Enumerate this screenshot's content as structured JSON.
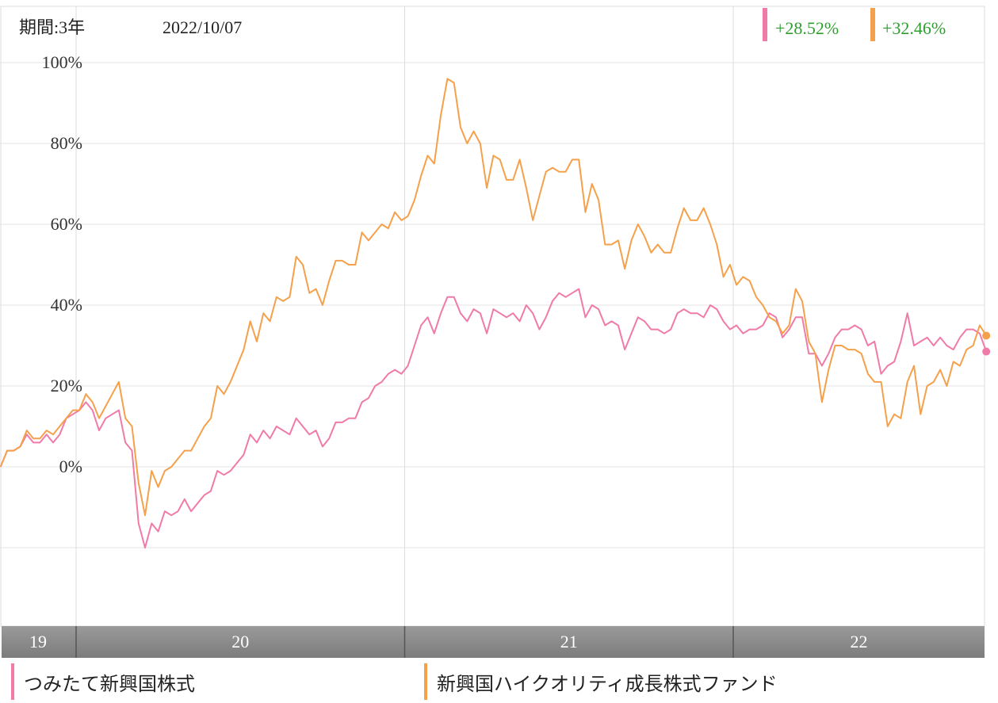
{
  "header": {
    "period": "期間:3年",
    "date": "2022/10/07"
  },
  "legend": [
    {
      "label": "つみたて新興国株式",
      "color": "#f07aa8",
      "change": "+28.52%"
    },
    {
      "label": "新興国ハイクオリティ成長株式ファンド",
      "color": "#f5a04a",
      "change": "+32.46%"
    }
  ],
  "colors": {
    "positive_text": "#2e9e2e",
    "time_axis_band": "#8c8c8c"
  },
  "chart_data": {
    "type": "line",
    "y_ticks": [
      "100%",
      "80%",
      "60%",
      "40%",
      "20%",
      "0%"
    ],
    "y_tick_values": [
      100,
      80,
      60,
      40,
      20,
      0
    ],
    "ylim": [
      -40,
      100
    ],
    "xlim": [
      2019.77,
      2022.77
    ],
    "x_ticks": [
      "19",
      "20",
      "21",
      "22"
    ],
    "year_boundaries": [
      2020,
      2021,
      2022
    ],
    "grid": true,
    "legend_placement": "top-right",
    "series": [
      {
        "name": "つみたて新興国株式",
        "color": "#f07aa8",
        "points": [
          [
            2019.77,
            0
          ],
          [
            2019.79,
            4
          ],
          [
            2019.81,
            4
          ],
          [
            2019.83,
            5
          ],
          [
            2019.85,
            8
          ],
          [
            2019.87,
            6
          ],
          [
            2019.89,
            6
          ],
          [
            2019.91,
            8
          ],
          [
            2019.93,
            6
          ],
          [
            2019.95,
            8
          ],
          [
            2019.97,
            12
          ],
          [
            2019.99,
            13
          ],
          [
            2020.01,
            14
          ],
          [
            2020.03,
            16
          ],
          [
            2020.05,
            14
          ],
          [
            2020.07,
            9
          ],
          [
            2020.09,
            12
          ],
          [
            2020.11,
            13
          ],
          [
            2020.13,
            14
          ],
          [
            2020.15,
            6
          ],
          [
            2020.17,
            4
          ],
          [
            2020.19,
            -14
          ],
          [
            2020.21,
            -20
          ],
          [
            2020.23,
            -14
          ],
          [
            2020.25,
            -16
          ],
          [
            2020.27,
            -11
          ],
          [
            2020.29,
            -12
          ],
          [
            2020.31,
            -11
          ],
          [
            2020.33,
            -8
          ],
          [
            2020.35,
            -11
          ],
          [
            2020.37,
            -9
          ],
          [
            2020.39,
            -7
          ],
          [
            2020.41,
            -6
          ],
          [
            2020.43,
            -1
          ],
          [
            2020.45,
            -2
          ],
          [
            2020.47,
            -1
          ],
          [
            2020.49,
            1
          ],
          [
            2020.51,
            3
          ],
          [
            2020.53,
            8
          ],
          [
            2020.55,
            6
          ],
          [
            2020.57,
            9
          ],
          [
            2020.59,
            7
          ],
          [
            2020.61,
            10
          ],
          [
            2020.63,
            9
          ],
          [
            2020.65,
            8
          ],
          [
            2020.67,
            12
          ],
          [
            2020.69,
            10
          ],
          [
            2020.71,
            8
          ],
          [
            2020.73,
            9
          ],
          [
            2020.75,
            5
          ],
          [
            2020.77,
            7
          ],
          [
            2020.79,
            11
          ],
          [
            2020.81,
            11
          ],
          [
            2020.83,
            12
          ],
          [
            2020.85,
            12
          ],
          [
            2020.87,
            16
          ],
          [
            2020.89,
            17
          ],
          [
            2020.91,
            20
          ],
          [
            2020.93,
            21
          ],
          [
            2020.95,
            23
          ],
          [
            2020.97,
            24
          ],
          [
            2020.99,
            23
          ],
          [
            2021.01,
            25
          ],
          [
            2021.03,
            30
          ],
          [
            2021.05,
            35
          ],
          [
            2021.07,
            37
          ],
          [
            2021.09,
            33
          ],
          [
            2021.11,
            38
          ],
          [
            2021.13,
            42
          ],
          [
            2021.15,
            42
          ],
          [
            2021.17,
            38
          ],
          [
            2021.19,
            36
          ],
          [
            2021.21,
            39
          ],
          [
            2021.23,
            38
          ],
          [
            2021.25,
            33
          ],
          [
            2021.27,
            39
          ],
          [
            2021.29,
            38
          ],
          [
            2021.31,
            37
          ],
          [
            2021.33,
            38
          ],
          [
            2021.35,
            36
          ],
          [
            2021.37,
            40
          ],
          [
            2021.39,
            38
          ],
          [
            2021.41,
            34
          ],
          [
            2021.43,
            37
          ],
          [
            2021.45,
            41
          ],
          [
            2021.47,
            43
          ],
          [
            2021.49,
            42
          ],
          [
            2021.51,
            43
          ],
          [
            2021.53,
            44
          ],
          [
            2021.55,
            37
          ],
          [
            2021.57,
            40
          ],
          [
            2021.59,
            39
          ],
          [
            2021.61,
            35
          ],
          [
            2021.63,
            36
          ],
          [
            2021.65,
            35
          ],
          [
            2021.67,
            29
          ],
          [
            2021.69,
            33
          ],
          [
            2021.71,
            37
          ],
          [
            2021.73,
            36
          ],
          [
            2021.75,
            34
          ],
          [
            2021.77,
            34
          ],
          [
            2021.79,
            33
          ],
          [
            2021.81,
            34
          ],
          [
            2021.83,
            38
          ],
          [
            2021.85,
            39
          ],
          [
            2021.87,
            38
          ],
          [
            2021.89,
            38
          ],
          [
            2021.91,
            37
          ],
          [
            2021.93,
            40
          ],
          [
            2021.95,
            39
          ],
          [
            2021.97,
            36
          ],
          [
            2021.99,
            34
          ],
          [
            2022.01,
            35
          ],
          [
            2022.03,
            33
          ],
          [
            2022.05,
            34
          ],
          [
            2022.07,
            34
          ],
          [
            2022.09,
            35
          ],
          [
            2022.11,
            38
          ],
          [
            2022.13,
            37
          ],
          [
            2022.15,
            32
          ],
          [
            2022.17,
            34
          ],
          [
            2022.19,
            37
          ],
          [
            2022.21,
            37
          ],
          [
            2022.23,
            28
          ],
          [
            2022.25,
            28
          ],
          [
            2022.27,
            25
          ],
          [
            2022.29,
            28
          ],
          [
            2022.31,
            32
          ],
          [
            2022.33,
            34
          ],
          [
            2022.35,
            34
          ],
          [
            2022.37,
            35
          ],
          [
            2022.39,
            34
          ],
          [
            2022.41,
            30
          ],
          [
            2022.43,
            31
          ],
          [
            2022.45,
            23
          ],
          [
            2022.47,
            25
          ],
          [
            2022.49,
            26
          ],
          [
            2022.51,
            31
          ],
          [
            2022.53,
            38
          ],
          [
            2022.55,
            30
          ],
          [
            2022.57,
            31
          ],
          [
            2022.59,
            32
          ],
          [
            2022.61,
            30
          ],
          [
            2022.63,
            32
          ],
          [
            2022.65,
            30
          ],
          [
            2022.67,
            29
          ],
          [
            2022.69,
            32
          ],
          [
            2022.71,
            34
          ],
          [
            2022.73,
            34
          ],
          [
            2022.75,
            33
          ],
          [
            2022.77,
            28.52
          ]
        ]
      },
      {
        "name": "新興国ハイクオリティ成長株式ファンド",
        "color": "#f5a04a",
        "points": [
          [
            2019.77,
            0
          ],
          [
            2019.79,
            4
          ],
          [
            2019.81,
            4
          ],
          [
            2019.83,
            5
          ],
          [
            2019.85,
            9
          ],
          [
            2019.87,
            7
          ],
          [
            2019.89,
            7
          ],
          [
            2019.91,
            9
          ],
          [
            2019.93,
            8
          ],
          [
            2019.95,
            10
          ],
          [
            2019.97,
            12
          ],
          [
            2019.99,
            14
          ],
          [
            2020.01,
            14
          ],
          [
            2020.03,
            18
          ],
          [
            2020.05,
            16
          ],
          [
            2020.07,
            12
          ],
          [
            2020.09,
            15
          ],
          [
            2020.11,
            18
          ],
          [
            2020.13,
            21
          ],
          [
            2020.15,
            12
          ],
          [
            2020.17,
            10
          ],
          [
            2020.19,
            -4
          ],
          [
            2020.21,
            -12
          ],
          [
            2020.23,
            -1
          ],
          [
            2020.25,
            -5
          ],
          [
            2020.27,
            -1
          ],
          [
            2020.29,
            0
          ],
          [
            2020.31,
            2
          ],
          [
            2020.33,
            4
          ],
          [
            2020.35,
            4
          ],
          [
            2020.37,
            7
          ],
          [
            2020.39,
            10
          ],
          [
            2020.41,
            12
          ],
          [
            2020.43,
            20
          ],
          [
            2020.45,
            18
          ],
          [
            2020.47,
            21
          ],
          [
            2020.49,
            25
          ],
          [
            2020.51,
            29
          ],
          [
            2020.53,
            36
          ],
          [
            2020.55,
            31
          ],
          [
            2020.57,
            38
          ],
          [
            2020.59,
            36
          ],
          [
            2020.61,
            42
          ],
          [
            2020.63,
            41
          ],
          [
            2020.65,
            42
          ],
          [
            2020.67,
            52
          ],
          [
            2020.69,
            50
          ],
          [
            2020.71,
            43
          ],
          [
            2020.73,
            44
          ],
          [
            2020.75,
            40
          ],
          [
            2020.77,
            46
          ],
          [
            2020.79,
            51
          ],
          [
            2020.81,
            51
          ],
          [
            2020.83,
            50
          ],
          [
            2020.85,
            50
          ],
          [
            2020.87,
            58
          ],
          [
            2020.89,
            56
          ],
          [
            2020.91,
            58
          ],
          [
            2020.93,
            60
          ],
          [
            2020.95,
            59
          ],
          [
            2020.97,
            63
          ],
          [
            2020.99,
            61
          ],
          [
            2021.01,
            62
          ],
          [
            2021.03,
            66
          ],
          [
            2021.05,
            72
          ],
          [
            2021.07,
            77
          ],
          [
            2021.09,
            75
          ],
          [
            2021.11,
            87
          ],
          [
            2021.13,
            96
          ],
          [
            2021.15,
            95
          ],
          [
            2021.17,
            84
          ],
          [
            2021.19,
            80
          ],
          [
            2021.21,
            83
          ],
          [
            2021.23,
            80
          ],
          [
            2021.25,
            69
          ],
          [
            2021.27,
            77
          ],
          [
            2021.29,
            76
          ],
          [
            2021.31,
            71
          ],
          [
            2021.33,
            71
          ],
          [
            2021.35,
            76
          ],
          [
            2021.37,
            69
          ],
          [
            2021.39,
            61
          ],
          [
            2021.41,
            67
          ],
          [
            2021.43,
            73
          ],
          [
            2021.45,
            74
          ],
          [
            2021.47,
            73
          ],
          [
            2021.49,
            73
          ],
          [
            2021.51,
            76
          ],
          [
            2021.53,
            76
          ],
          [
            2021.55,
            63
          ],
          [
            2021.57,
            70
          ],
          [
            2021.59,
            66
          ],
          [
            2021.61,
            55
          ],
          [
            2021.63,
            55
          ],
          [
            2021.65,
            56
          ],
          [
            2021.67,
            49
          ],
          [
            2021.69,
            56
          ],
          [
            2021.71,
            60
          ],
          [
            2021.73,
            57
          ],
          [
            2021.75,
            53
          ],
          [
            2021.77,
            55
          ],
          [
            2021.79,
            53
          ],
          [
            2021.81,
            53
          ],
          [
            2021.83,
            59
          ],
          [
            2021.85,
            64
          ],
          [
            2021.87,
            61
          ],
          [
            2021.89,
            61
          ],
          [
            2021.91,
            64
          ],
          [
            2021.93,
            60
          ],
          [
            2021.95,
            55
          ],
          [
            2021.97,
            47
          ],
          [
            2021.99,
            50
          ],
          [
            2022.01,
            45
          ],
          [
            2022.03,
            47
          ],
          [
            2022.05,
            46
          ],
          [
            2022.07,
            42
          ],
          [
            2022.09,
            40
          ],
          [
            2022.11,
            37
          ],
          [
            2022.13,
            36
          ],
          [
            2022.15,
            33
          ],
          [
            2022.17,
            35
          ],
          [
            2022.19,
            44
          ],
          [
            2022.21,
            41
          ],
          [
            2022.23,
            31
          ],
          [
            2022.25,
            28
          ],
          [
            2022.27,
            16
          ],
          [
            2022.29,
            24
          ],
          [
            2022.31,
            30
          ],
          [
            2022.33,
            30
          ],
          [
            2022.35,
            29
          ],
          [
            2022.37,
            29
          ],
          [
            2022.39,
            28
          ],
          [
            2022.41,
            23
          ],
          [
            2022.43,
            21
          ],
          [
            2022.45,
            21
          ],
          [
            2022.47,
            10
          ],
          [
            2022.49,
            13
          ],
          [
            2022.51,
            12
          ],
          [
            2022.53,
            21
          ],
          [
            2022.55,
            25
          ],
          [
            2022.57,
            13
          ],
          [
            2022.59,
            20
          ],
          [
            2022.61,
            21
          ],
          [
            2022.63,
            24
          ],
          [
            2022.65,
            20
          ],
          [
            2022.67,
            26
          ],
          [
            2022.69,
            25
          ],
          [
            2022.71,
            29
          ],
          [
            2022.73,
            30
          ],
          [
            2022.75,
            35
          ],
          [
            2022.77,
            32.46
          ]
        ]
      }
    ]
  }
}
